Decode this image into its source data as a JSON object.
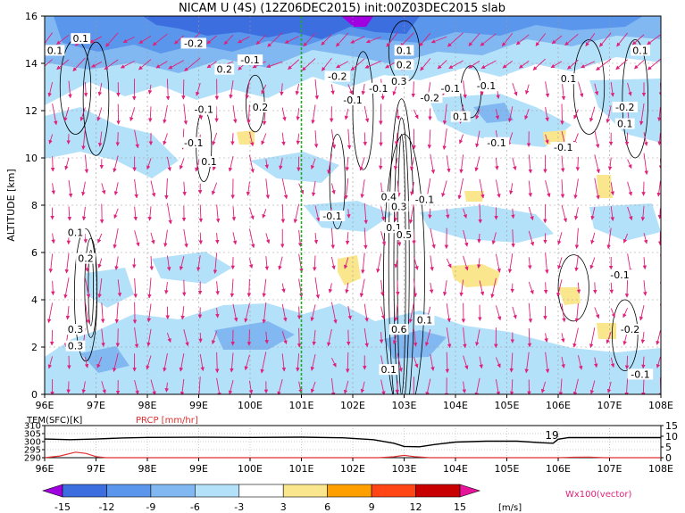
{
  "title": "NICAM U (4S) (12Z06DEC2015) init:00Z03DEC2015 slab",
  "colors": {
    "vector": "#e0207a",
    "reference_line": "#22aa22",
    "temperature_line": "#000000",
    "precip_line": "#e03030",
    "grid": "#999999"
  },
  "chart_data": [
    {
      "type": "heatmap",
      "name": "zonal-wind-cross-section",
      "ylabel": "ALTITUDE [km]",
      "x_ticks": [
        "96E",
        "97E",
        "98E",
        "99E",
        "100E",
        "101E",
        "102E",
        "103E",
        "104E",
        "105E",
        "106E",
        "107E",
        "108E"
      ],
      "x_range": [
        96,
        108
      ],
      "y_ticks": [
        "0",
        "2",
        "4",
        "6",
        "8",
        "10",
        "12",
        "14",
        "16"
      ],
      "y_range": [
        0,
        16
      ],
      "grid": true,
      "reference_longitude": 101,
      "vector_label": "Wx100(vector)",
      "contour_labels": [
        {
          "text": "0.1",
          "lon": 96.2,
          "alt": 14.4
        },
        {
          "text": "0.1",
          "lon": 96.7,
          "alt": 14.9
        },
        {
          "text": "-0.1",
          "lon": 100.0,
          "alt": 14.0
        },
        {
          "text": "-0.2",
          "lon": 98.9,
          "alt": 14.7
        },
        {
          "text": "0.2",
          "lon": 99.5,
          "alt": 13.6
        },
        {
          "text": "-0.1",
          "lon": 99.1,
          "alt": 11.9
        },
        {
          "text": "-0.1",
          "lon": 98.9,
          "alt": 10.5
        },
        {
          "text": "0.1",
          "lon": 99.2,
          "alt": 9.7
        },
        {
          "text": "0.2",
          "lon": 100.2,
          "alt": 12.0
        },
        {
          "text": "-0.2",
          "lon": 101.7,
          "alt": 13.3
        },
        {
          "text": "-0.1",
          "lon": 102.0,
          "alt": 12.3
        },
        {
          "text": "-0.1",
          "lon": 102.5,
          "alt": 12.8
        },
        {
          "text": "0.1",
          "lon": 103.0,
          "alt": 14.4
        },
        {
          "text": "0.2",
          "lon": 103.0,
          "alt": 13.8
        },
        {
          "text": "0.3",
          "lon": 102.9,
          "alt": 13.1
        },
        {
          "text": "-0.2",
          "lon": 103.5,
          "alt": 12.4
        },
        {
          "text": "-0.1",
          "lon": 103.9,
          "alt": 12.8
        },
        {
          "text": "-0.1",
          "lon": 104.6,
          "alt": 12.9
        },
        {
          "text": "0.1",
          "lon": 104.1,
          "alt": 11.6
        },
        {
          "text": "-0.1",
          "lon": 104.8,
          "alt": 10.5
        },
        {
          "text": "0.1",
          "lon": 106.2,
          "alt": 13.2
        },
        {
          "text": "-0.1",
          "lon": 106.1,
          "alt": 10.3
        },
        {
          "text": "-0.2",
          "lon": 107.3,
          "alt": 12.0
        },
        {
          "text": "0.1",
          "lon": 107.3,
          "alt": 11.3
        },
        {
          "text": "0.1",
          "lon": 107.6,
          "alt": 14.4
        },
        {
          "text": "-0.1",
          "lon": 101.6,
          "alt": 7.4
        },
        {
          "text": "0.4",
          "lon": 102.7,
          "alt": 8.2
        },
        {
          "text": "0.3",
          "lon": 102.9,
          "alt": 7.8
        },
        {
          "text": "-0.1",
          "lon": 103.4,
          "alt": 8.1
        },
        {
          "text": "0.1",
          "lon": 102.8,
          "alt": 6.9
        },
        {
          "text": "0.5",
          "lon": 103.0,
          "alt": 6.6
        },
        {
          "text": "0.6",
          "lon": 102.9,
          "alt": 2.6
        },
        {
          "text": "0.1",
          "lon": 103.4,
          "alt": 3.0
        },
        {
          "text": "0.1",
          "lon": 102.7,
          "alt": 0.9
        },
        {
          "text": "0.1",
          "lon": 96.6,
          "alt": 6.7
        },
        {
          "text": "0.2",
          "lon": 96.8,
          "alt": 5.6
        },
        {
          "text": "0.3",
          "lon": 96.6,
          "alt": 2.6
        },
        {
          "text": "0.3",
          "lon": 96.6,
          "alt": 1.9
        },
        {
          "text": "-0.1",
          "lon": 107.2,
          "alt": 4.9
        },
        {
          "text": "-0.2",
          "lon": 107.4,
          "alt": 2.6
        },
        {
          "text": "-0.1",
          "lon": 107.6,
          "alt": 0.7
        }
      ]
    },
    {
      "type": "line",
      "name": "surface-temperature-and-precipitation",
      "labels": [
        "TEM(SFC)[K]",
        "PRCP [mm/hr]"
      ],
      "x_ticks": [
        "96E",
        "97E",
        "98E",
        "99E",
        "100E",
        "101E",
        "102E",
        "103E",
        "104E",
        "105E",
        "106E",
        "107E",
        "108E"
      ],
      "x_range": [
        96,
        108
      ],
      "left_ticks": [
        "310",
        "305",
        "300",
        "295",
        "290"
      ],
      "left_range": [
        290,
        310
      ],
      "right_ticks": [
        "15",
        "10",
        "5",
        "0"
      ],
      "right_range": [
        0,
        15
      ],
      "series": [
        {
          "name": "TEM(SFC)[K]",
          "axis": "left",
          "x": [
            96,
            96.5,
            97,
            97.5,
            98,
            99,
            100,
            101,
            101.8,
            102.4,
            102.8,
            103,
            103.3,
            103.6,
            104,
            104.6,
            105.2,
            105.7,
            105.9,
            106.0,
            106.2,
            107,
            108
          ],
          "y": [
            301.6,
            301.2,
            301.6,
            302.3,
            302.6,
            302.7,
            302.6,
            302.8,
            302.4,
            301.2,
            299.0,
            297.0,
            296.8,
            298.2,
            299.7,
            300.3,
            300.3,
            299.3,
            299.0,
            301.5,
            302.5,
            302.5,
            302.5
          ]
        },
        {
          "name": "PRCP [mm/hr]",
          "axis": "right",
          "x": [
            96,
            96.3,
            96.6,
            96.8,
            97,
            97.2,
            97.5,
            98,
            102.5,
            102.8,
            103.0,
            103.2,
            103.5,
            104,
            106,
            106.3,
            106.6,
            106.9,
            108
          ],
          "y": [
            0,
            0.8,
            2.6,
            2.0,
            0.5,
            0,
            0,
            0,
            0,
            0.4,
            1.1,
            0.5,
            0,
            0,
            0,
            0.2,
            0.3,
            0,
            0
          ]
        }
      ],
      "annotation": {
        "text": "19",
        "lon": 105.85
      }
    },
    {
      "type": "legend",
      "name": "color-scale",
      "boundaries": [
        "-15",
        "-12",
        "-9",
        "-6",
        "-3",
        "3",
        "6",
        "9",
        "12",
        "15"
      ],
      "colors": [
        "#a000e0",
        "#3c6ee0",
        "#5a96ec",
        "#82b8f2",
        "#b4e1fa",
        "#ffffff",
        "#fae68c",
        "#ffa000",
        "#ff4614",
        "#c80000",
        "#e6149b"
      ],
      "unit": "[m/s]"
    }
  ]
}
